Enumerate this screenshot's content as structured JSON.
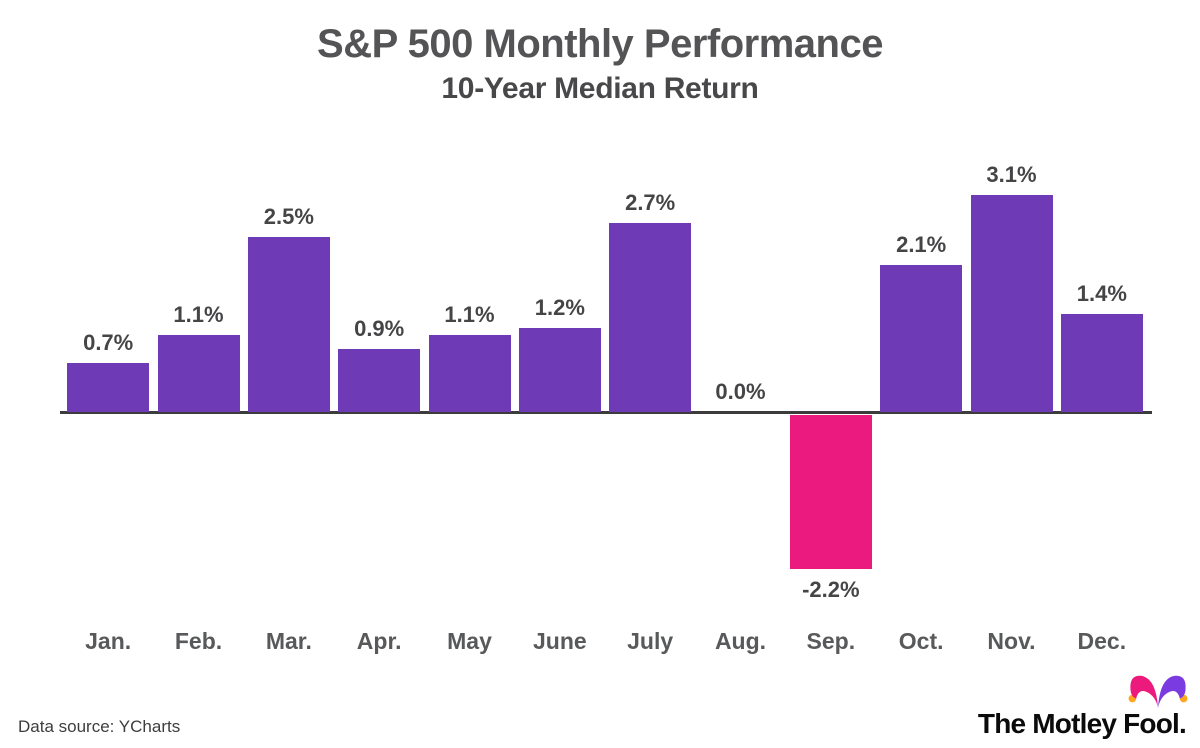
{
  "header": {
    "title": "S&P 500 Monthly Performance",
    "subtitle": "10-Year Median Return"
  },
  "footer": {
    "source_text": "Data source: YCharts",
    "logo_text": "The Motley Fool."
  },
  "colors": {
    "positive_bar": "#6E3AB5",
    "negative_bar": "#EA1A7F",
    "axis": "#3c3c3c",
    "title_gray": "#545456",
    "label_gray": "#58595b",
    "hat_pink": "#ED1A7D",
    "hat_purple": "#7A3BE0",
    "hat_bell_yellow": "#FFA81E"
  },
  "chart_data": {
    "type": "bar",
    "title": "S&P 500 Monthly Performance",
    "subtitle": "10-Year Median Return",
    "categories": [
      "Jan.",
      "Feb.",
      "Mar.",
      "Apr.",
      "May",
      "June",
      "July",
      "Aug.",
      "Sep.",
      "Oct.",
      "Nov.",
      "Dec."
    ],
    "values": [
      0.7,
      1.1,
      2.5,
      0.9,
      1.1,
      1.2,
      2.7,
      0.0,
      -2.2,
      2.1,
      3.1,
      1.4
    ],
    "labels": [
      "0.7%",
      "1.1%",
      "2.5%",
      "0.9%",
      "1.1%",
      "1.2%",
      "2.7%",
      "0.0%",
      "-2.2%",
      "2.1%",
      "3.1%",
      "1.4%"
    ],
    "positive_color": "#6E3AB5",
    "negative_color": "#EA1A7F",
    "xlabel": "",
    "ylabel": "",
    "ylim": [
      -2.6,
      3.5
    ],
    "grid": false,
    "legend": "none",
    "data_labels": true
  }
}
